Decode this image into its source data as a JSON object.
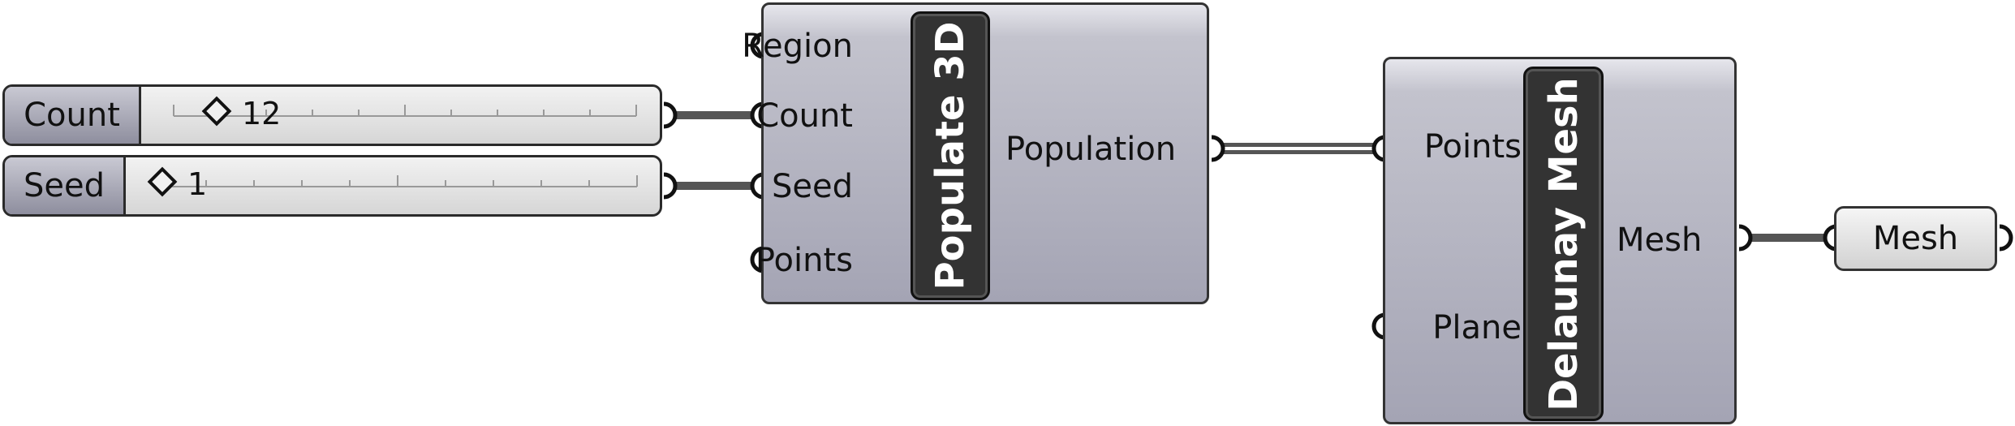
{
  "sliders": {
    "count": {
      "label": "Count",
      "value": "12"
    },
    "seed": {
      "label": "Seed",
      "value": "1"
    }
  },
  "populate": {
    "title": "Populate 3D",
    "inputs": [
      "Region",
      "Count",
      "Seed",
      "Points"
    ],
    "output": "Population"
  },
  "delaunay": {
    "title": "Delaunay Mesh",
    "inputs": [
      "Points",
      "Plane"
    ],
    "output": "Mesh"
  },
  "mesh_param": {
    "label": "Mesh"
  },
  "colors": {
    "wire": "#555555",
    "node_body": "#a8a8b8",
    "plate": "#333333"
  }
}
